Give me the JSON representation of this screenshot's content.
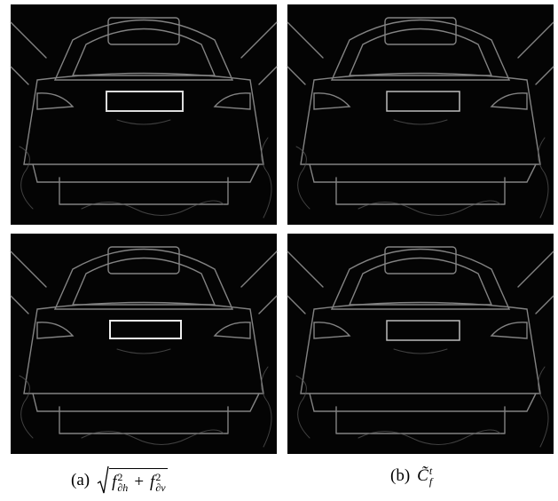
{
  "captions": [
    {
      "label": "(a)",
      "formula": {
        "terms": [
          {
            "base": "f",
            "sup": "2",
            "sub": "∂h"
          },
          {
            "base": "f",
            "sup": "2",
            "sub": "∂v"
          }
        ],
        "operator": "+"
      }
    },
    {
      "label": "(b)",
      "formula": {
        "base": "C̃",
        "sup": "t",
        "sub": "f"
      }
    }
  ]
}
